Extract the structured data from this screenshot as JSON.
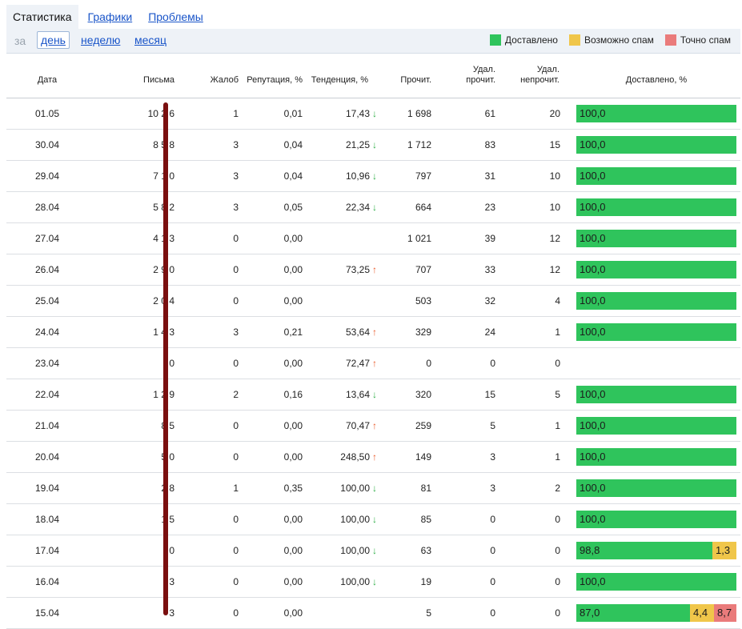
{
  "tabs": [
    {
      "label": "Статистика",
      "active": true
    },
    {
      "label": "Графики",
      "active": false
    },
    {
      "label": "Проблемы",
      "active": false
    }
  ],
  "period": {
    "label": "за",
    "options": [
      {
        "label": "день",
        "active": true
      },
      {
        "label": "неделю",
        "active": false
      },
      {
        "label": "месяц",
        "active": false
      }
    ]
  },
  "legend": [
    {
      "label": "Доставлено",
      "color": "#2fc45c"
    },
    {
      "label": "Возможно спам",
      "color": "#f0c64a"
    },
    {
      "label": "Точно спам",
      "color": "#ea7b7b"
    }
  ],
  "columns": {
    "date": "Дата",
    "letters": "Письма",
    "complaints": "Жалоб",
    "reputation": "Репутация, %",
    "trend": "Тенденция, %",
    "read": "Прочит.",
    "del_read_1": "Удал.",
    "del_read_2": "прочит.",
    "del_unread_1": "Удал.",
    "del_unread_2": "непрочит.",
    "delivered": "Доставлено, %"
  },
  "rows": [
    {
      "date": "01.05",
      "letters": "10 2 6",
      "complaints": "1",
      "reputation": "0,01",
      "trend": "17,43",
      "trend_dir": "down",
      "read": "1 698",
      "del_read": "61",
      "del_unread": "20",
      "bar": [
        {
          "type": "green",
          "value": "100,0",
          "pct": 100
        }
      ]
    },
    {
      "date": "30.04",
      "letters": "8 5 8",
      "complaints": "3",
      "reputation": "0,04",
      "trend": "21,25",
      "trend_dir": "down",
      "read": "1 712",
      "del_read": "83",
      "del_unread": "15",
      "bar": [
        {
          "type": "green",
          "value": "100,0",
          "pct": 100
        }
      ]
    },
    {
      "date": "29.04",
      "letters": "7 1 0",
      "complaints": "3",
      "reputation": "0,04",
      "trend": "10,96",
      "trend_dir": "down",
      "read": "797",
      "del_read": "31",
      "del_unread": "10",
      "bar": [
        {
          "type": "green",
          "value": "100,0",
          "pct": 100
        }
      ]
    },
    {
      "date": "28.04",
      "letters": "5 8 2",
      "complaints": "3",
      "reputation": "0,05",
      "trend": "22,34",
      "trend_dir": "down",
      "read": "664",
      "del_read": "23",
      "del_unread": "10",
      "bar": [
        {
          "type": "green",
          "value": "100,0",
          "pct": 100
        }
      ]
    },
    {
      "date": "27.04",
      "letters": "4 1 3",
      "complaints": "0",
      "reputation": "0,00",
      "trend": "",
      "trend_dir": "",
      "read": "1 021",
      "del_read": "39",
      "del_unread": "12",
      "bar": [
        {
          "type": "green",
          "value": "100,0",
          "pct": 100
        }
      ]
    },
    {
      "date": "26.04",
      "letters": "2 9 0",
      "complaints": "0",
      "reputation": "0,00",
      "trend": "73,25",
      "trend_dir": "up",
      "read": "707",
      "del_read": "33",
      "del_unread": "12",
      "bar": [
        {
          "type": "green",
          "value": "100,0",
          "pct": 100
        }
      ]
    },
    {
      "date": "25.04",
      "letters": "2 0 4",
      "complaints": "0",
      "reputation": "0,00",
      "trend": "",
      "trend_dir": "",
      "read": "503",
      "del_read": "32",
      "del_unread": "4",
      "bar": [
        {
          "type": "green",
          "value": "100,0",
          "pct": 100
        }
      ]
    },
    {
      "date": "24.04",
      "letters": "1 4 3",
      "complaints": "3",
      "reputation": "0,21",
      "trend": "53,64",
      "trend_dir": "up",
      "read": "329",
      "del_read": "24",
      "del_unread": "1",
      "bar": [
        {
          "type": "green",
          "value": "100,0",
          "pct": 100
        }
      ]
    },
    {
      "date": "23.04",
      "letters": "0",
      "complaints": "0",
      "reputation": "0,00",
      "trend": "72,47",
      "trend_dir": "up",
      "read": "0",
      "del_read": "0",
      "del_unread": "0",
      "bar": []
    },
    {
      "date": "22.04",
      "letters": "1 2 9",
      "complaints": "2",
      "reputation": "0,16",
      "trend": "13,64",
      "trend_dir": "down",
      "read": "320",
      "del_read": "15",
      "del_unread": "5",
      "bar": [
        {
          "type": "green",
          "value": "100,0",
          "pct": 100
        }
      ]
    },
    {
      "date": "21.04",
      "letters": "8 5",
      "complaints": "0",
      "reputation": "0,00",
      "trend": "70,47",
      "trend_dir": "up",
      "read": "259",
      "del_read": "5",
      "del_unread": "1",
      "bar": [
        {
          "type": "green",
          "value": "100,0",
          "pct": 100
        }
      ]
    },
    {
      "date": "20.04",
      "letters": "5 0",
      "complaints": "0",
      "reputation": "0,00",
      "trend": "248,50",
      "trend_dir": "up",
      "read": "149",
      "del_read": "3",
      "del_unread": "1",
      "bar": [
        {
          "type": "green",
          "value": "100,0",
          "pct": 100
        }
      ]
    },
    {
      "date": "19.04",
      "letters": "2 8",
      "complaints": "1",
      "reputation": "0,35",
      "trend": "100,00",
      "trend_dir": "down",
      "read": "81",
      "del_read": "3",
      "del_unread": "2",
      "bar": [
        {
          "type": "green",
          "value": "100,0",
          "pct": 100
        }
      ]
    },
    {
      "date": "18.04",
      "letters": "1 5",
      "complaints": "0",
      "reputation": "0,00",
      "trend": "100,00",
      "trend_dir": "down",
      "read": "85",
      "del_read": "0",
      "del_unread": "0",
      "bar": [
        {
          "type": "green",
          "value": "100,0",
          "pct": 100
        }
      ]
    },
    {
      "date": "17.04",
      "letters": "0",
      "complaints": "0",
      "reputation": "0,00",
      "trend": "100,00",
      "trend_dir": "down",
      "read": "63",
      "del_read": "0",
      "del_unread": "0",
      "bar": [
        {
          "type": "green",
          "value": "98,8",
          "pct": 85
        },
        {
          "type": "yellow",
          "value": "1,3",
          "pct": 15
        }
      ]
    },
    {
      "date": "16.04",
      "letters": "3",
      "complaints": "0",
      "reputation": "0,00",
      "trend": "100,00",
      "trend_dir": "down",
      "read": "19",
      "del_read": "0",
      "del_unread": "0",
      "bar": [
        {
          "type": "green",
          "value": "100,0",
          "pct": 100
        }
      ]
    },
    {
      "date": "15.04",
      "letters": "3",
      "complaints": "0",
      "reputation": "0,00",
      "trend": "",
      "trend_dir": "",
      "read": "5",
      "del_read": "0",
      "del_unread": "0",
      "bar": [
        {
          "type": "green",
          "value": "87,0",
          "pct": 71
        },
        {
          "type": "yellow",
          "value": "4,4",
          "pct": 15
        },
        {
          "type": "red",
          "value": "8,7",
          "pct": 14
        }
      ]
    }
  ],
  "colors": {
    "green": "#2fc45c",
    "yellow": "#f0c64a",
    "red": "#ea7b7b",
    "link": "#1a55c9",
    "arrow_down": "#2eae47",
    "arrow_up": "#ea5a2a"
  },
  "icons": {
    "trend_down": "arrow-down-icon",
    "trend_up": "arrow-up-icon"
  }
}
